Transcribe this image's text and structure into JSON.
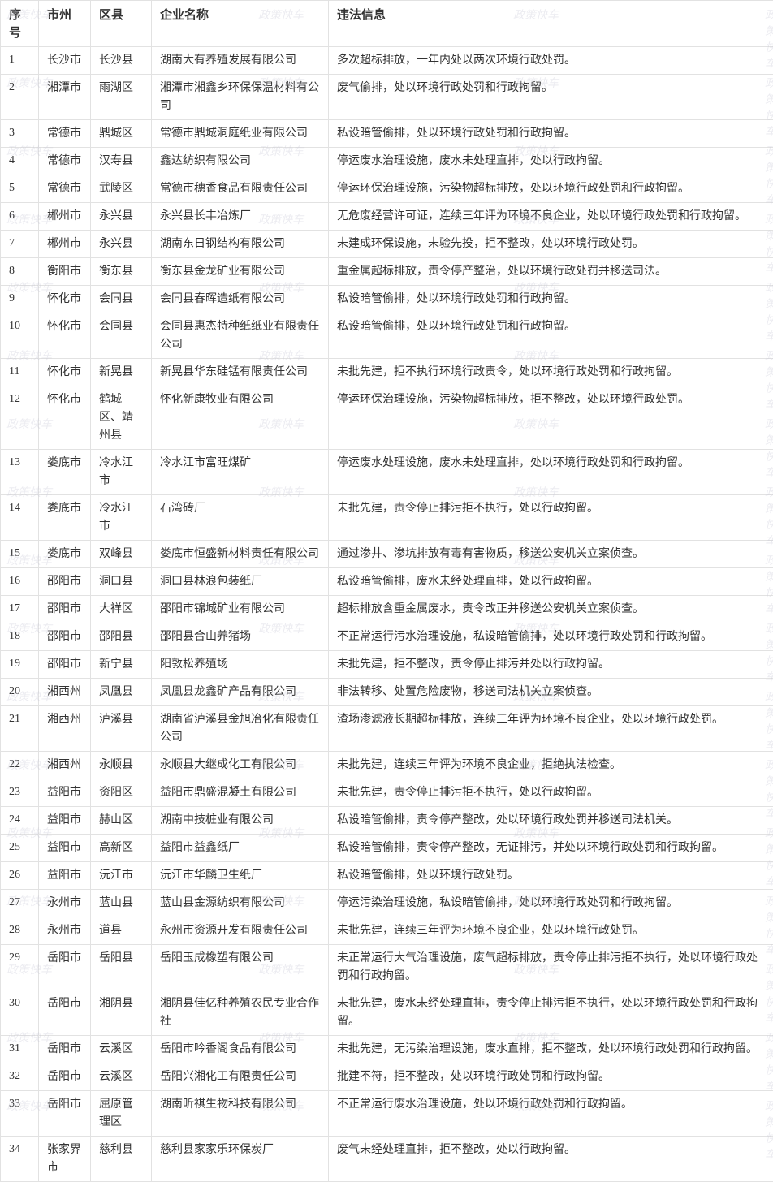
{
  "watermark": "政策快车",
  "table": {
    "headers": [
      "序号",
      "市州",
      "区县",
      "企业名称",
      "违法信息"
    ],
    "rows": [
      [
        "1",
        "长沙市",
        "长沙县",
        "湖南大有养殖发展有限公司",
        "多次超标排放，一年内处以两次环境行政处罚。"
      ],
      [
        "2",
        "湘潭市",
        "雨湖区",
        "湘潭市湘鑫乡环保保温材料有公司",
        "废气偷排，处以环境行政处罚和行政拘留。"
      ],
      [
        "3",
        "常德市",
        "鼎城区",
        "常德市鼎城洞庭纸业有限公司",
        "私设暗管偷排，处以环境行政处罚和行政拘留。"
      ],
      [
        "4",
        "常德市",
        "汉寿县",
        "鑫达纺织有限公司",
        "停运废水治理设施，废水未处理直排，处以行政拘留。"
      ],
      [
        "5",
        "常德市",
        "武陵区",
        "常德市穗香食品有限责任公司",
        "停运环保治理设施，污染物超标排放，处以环境行政处罚和行政拘留。"
      ],
      [
        "6",
        "郴州市",
        "永兴县",
        "永兴县长丰冶炼厂",
        "无危废经营许可证，连续三年评为环境不良企业，处以环境行政处罚和行政拘留。"
      ],
      [
        "7",
        "郴州市",
        "永兴县",
        "湖南东日钢结构有限公司",
        "未建成环保设施，未验先投，拒不整改，处以环境行政处罚。"
      ],
      [
        "8",
        "衡阳市",
        "衡东县",
        "衡东县金龙矿业有限公司",
        "重金属超标排放，责令停产整治，处以环境行政处罚并移送司法。"
      ],
      [
        "9",
        "怀化市",
        "会同县",
        "会同县春晖造纸有限公司",
        "私设暗管偷排，处以环境行政处罚和行政拘留。"
      ],
      [
        "10",
        "怀化市",
        "会同县",
        "会同县惠杰特种纸纸业有限责任公司",
        "私设暗管偷排，处以环境行政处罚和行政拘留。"
      ],
      [
        "11",
        "怀化市",
        "新晃县",
        "新晃县华东硅锰有限责任公司",
        "未批先建，拒不执行环境行政责令，处以环境行政处罚和行政拘留。"
      ],
      [
        "12",
        "怀化市",
        "鹤城区、靖州县",
        "怀化新康牧业有限公司",
        "停运环保治理设施，污染物超标排放，拒不整改，处以环境行政处罚。"
      ],
      [
        "13",
        "娄底市",
        "冷水江市",
        "冷水江市富旺煤矿",
        "停运废水处理设施，废水未处理直排，处以环境行政处罚和行政拘留。"
      ],
      [
        "14",
        "娄底市",
        "冷水江市",
        "石湾砖厂",
        "未批先建，责令停止排污拒不执行，处以行政拘留。"
      ],
      [
        "15",
        "娄底市",
        "双峰县",
        "娄底市恒盛新材料责任有限公司",
        "通过渗井、渗坑排放有毒有害物质，移送公安机关立案侦查。"
      ],
      [
        "16",
        "邵阳市",
        "洞口县",
        "洞口县林浪包装纸厂",
        "私设暗管偷排，废水未经处理直排，处以行政拘留。"
      ],
      [
        "17",
        "邵阳市",
        "大祥区",
        "邵阳市锦城矿业有限公司",
        "超标排放含重金属废水，责令改正并移送公安机关立案侦查。"
      ],
      [
        "18",
        "邵阳市",
        "邵阳县",
        "邵阳县合山养猪场",
        "不正常运行污水治理设施，私设暗管偷排，处以环境行政处罚和行政拘留。"
      ],
      [
        "19",
        "邵阳市",
        "新宁县",
        "阳敦松养殖场",
        "未批先建，拒不整改，责令停止排污并处以行政拘留。"
      ],
      [
        "20",
        "湘西州",
        "凤凰县",
        "凤凰县龙鑫矿产品有限公司",
        "非法转移、处置危险废物，移送司法机关立案侦查。"
      ],
      [
        "21",
        "湘西州",
        "泸溪县",
        "湖南省泸溪县金旭冶化有限责任公司",
        "渣场渗滤液长期超标排放，连续三年评为环境不良企业，处以环境行政处罚。"
      ],
      [
        "22",
        "湘西州",
        "永顺县",
        "永顺县大继成化工有限公司",
        "未批先建，连续三年评为环境不良企业，拒绝执法检查。"
      ],
      [
        "23",
        "益阳市",
        "资阳区",
        "益阳市鼎盛混凝土有限公司",
        "未批先建，责令停止排污拒不执行，处以行政拘留。"
      ],
      [
        "24",
        "益阳市",
        "赫山区",
        "湖南中技桩业有限公司",
        "私设暗管偷排，责令停产整改，处以环境行政处罚并移送司法机关。"
      ],
      [
        "25",
        "益阳市",
        "高新区",
        "益阳市益鑫纸厂",
        "私设暗管偷排，责令停产整改，无证排污，并处以环境行政处罚和行政拘留。"
      ],
      [
        "26",
        "益阳市",
        "沅江市",
        "沅江市华麟卫生纸厂",
        "私设暗管偷排，处以环境行政处罚。"
      ],
      [
        "27",
        "永州市",
        "蓝山县",
        "蓝山县金源纺织有限公司",
        "停运污染治理设施，私设暗管偷排，处以环境行政处罚和行政拘留。"
      ],
      [
        "28",
        "永州市",
        "道县",
        "永州市资源开发有限责任公司",
        "未批先建，连续三年评为环境不良企业，处以环境行政处罚。"
      ],
      [
        "29",
        "岳阳市",
        "岳阳县",
        "岳阳玉成橡塑有限公司",
        "未正常运行大气治理设施，废气超标排放，责令停止排污拒不执行，处以环境行政处罚和行政拘留。"
      ],
      [
        "30",
        "岳阳市",
        "湘阴县",
        "湘阴县佳亿种养殖农民专业合作社",
        "未批先建，废水未经处理直排，责令停止排污拒不执行，处以环境行政处罚和行政拘留。"
      ],
      [
        "31",
        "岳阳市",
        "云溪区",
        "岳阳市吟香阁食品有限公司",
        "未批先建，无污染治理设施，废水直排，拒不整改，处以环境行政处罚和行政拘留。"
      ],
      [
        "32",
        "岳阳市",
        "云溪区",
        "岳阳兴湘化工有限责任公司",
        "批建不符，拒不整改，处以环境行政处罚和行政拘留。"
      ],
      [
        "33",
        "岳阳市",
        "屈原管理区",
        "湖南昕祺生物科技有限公司",
        "不正常运行废水治理设施，处以环境行政处罚和行政拘留。"
      ],
      [
        "34",
        "张家界市",
        "慈利县",
        "慈利县家家乐环保炭厂",
        "废气未经处理直排，拒不整改，处以行政拘留。"
      ]
    ]
  }
}
